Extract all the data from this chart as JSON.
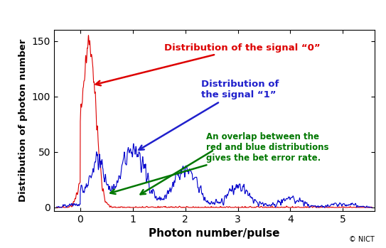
{
  "xlabel": "Photon number/pulse",
  "ylabel": "Distribution of photon number",
  "xlim": [
    -0.5,
    5.6
  ],
  "ylim": [
    -3,
    160
  ],
  "yticks": [
    0,
    50,
    100,
    150
  ],
  "xticks": [
    0,
    1,
    2,
    3,
    4,
    5
  ],
  "background_color": "#ffffff",
  "annotation_signal0": "Distribution of the signal “0”",
  "annotation_signal1": "Distribution of\nthe signal “1”",
  "annotation_overlap": "An overlap between the\nred and blue distributions\ngives the bet error rate.",
  "copyright": "© NICT",
  "signal0_color": "#dd0000",
  "signal1_color": "#0000cc",
  "signal0_label_color": "#dd0000",
  "signal1_label_color": "#2020cc",
  "overlap_label_color": "#007700"
}
